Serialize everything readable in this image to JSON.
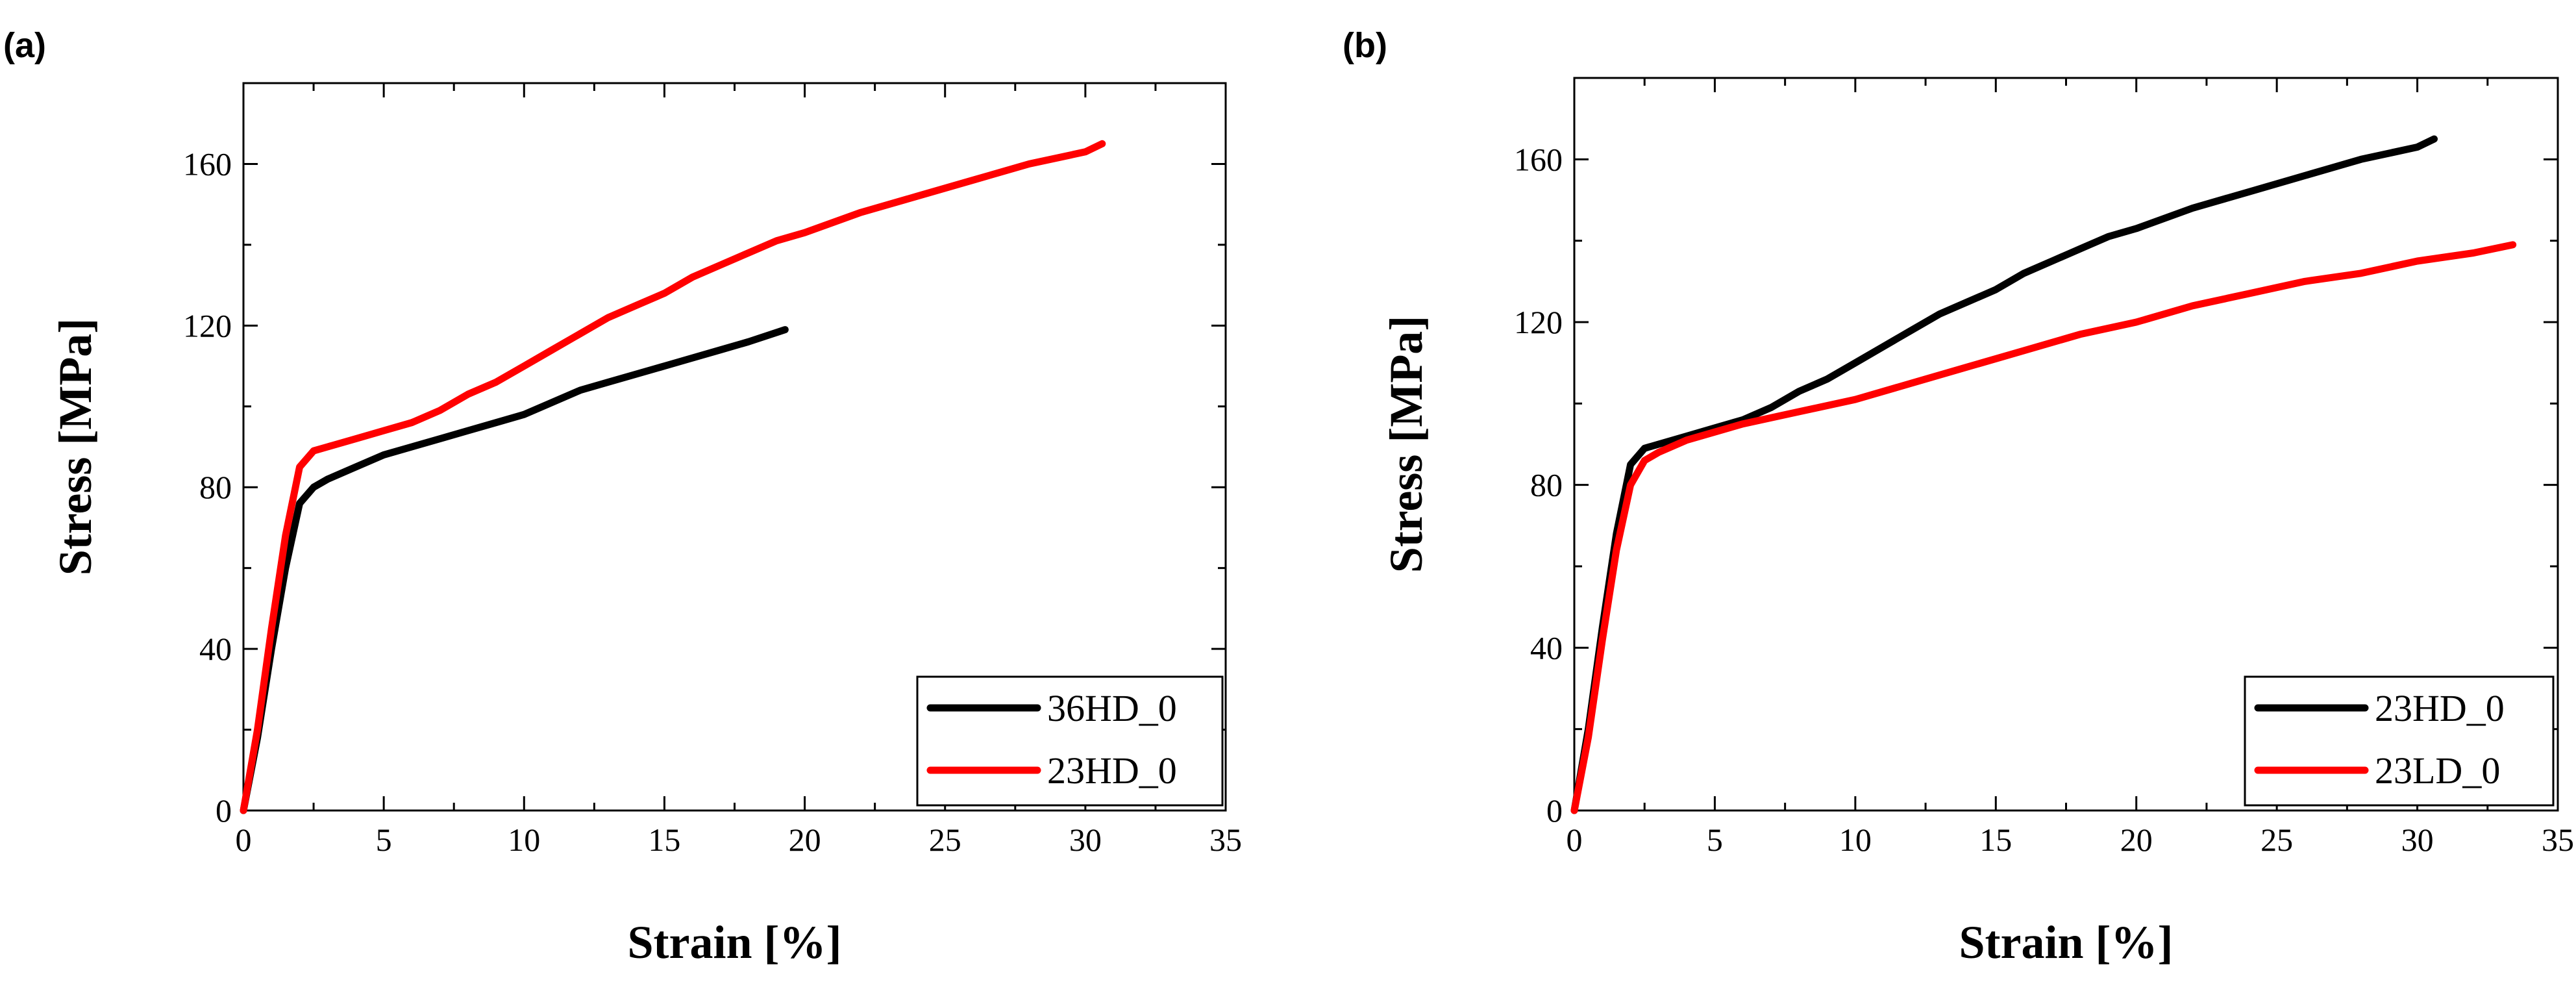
{
  "colors": {
    "black_series": "#000000",
    "red_series": "#ff0000"
  },
  "chart_data": [
    {
      "panel_label": "(a)",
      "type": "line",
      "title": "",
      "xlabel": "Strain [%]",
      "ylabel": "Stress [MPa]",
      "xlim": [
        0,
        35
      ],
      "ylim": [
        0,
        180
      ],
      "xticks": [
        0,
        5,
        10,
        15,
        20,
        25,
        30,
        35
      ],
      "yticks": [
        0,
        40,
        80,
        120,
        160
      ],
      "grid": false,
      "legend_position": "bottom-right",
      "series": [
        {
          "name": "36HD_0",
          "color": "#000000",
          "x": [
            0,
            0.5,
            1.0,
            1.5,
            2.0,
            2.5,
            3,
            4,
            5,
            6,
            7,
            8,
            9,
            10,
            11,
            12,
            13,
            14,
            15,
            16,
            17,
            18,
            19.3
          ],
          "y": [
            0,
            18,
            40,
            60,
            76,
            80,
            82,
            85,
            88,
            90,
            92,
            94,
            96,
            98,
            101,
            104,
            106,
            108,
            110,
            112,
            114,
            116,
            119
          ]
        },
        {
          "name": "23HD_0",
          "color": "#ff0000",
          "x": [
            0,
            0.5,
            1.0,
            1.5,
            2.0,
            2.5,
            3,
            4,
            5,
            6,
            7,
            8,
            9,
            10,
            11,
            12,
            13,
            14,
            15,
            16,
            17,
            18,
            19,
            20,
            22,
            24,
            26,
            28,
            30,
            30.6
          ],
          "y": [
            0,
            20,
            45,
            68,
            85,
            89,
            90,
            92,
            94,
            96,
            99,
            103,
            106,
            110,
            114,
            118,
            122,
            125,
            128,
            132,
            135,
            138,
            141,
            143,
            148,
            152,
            156,
            160,
            163,
            165
          ]
        }
      ]
    },
    {
      "panel_label": "(b)",
      "type": "line",
      "title": "",
      "xlabel": "Strain [%]",
      "ylabel": "Stress [MPa]",
      "xlim": [
        0,
        35
      ],
      "ylim": [
        0,
        180
      ],
      "xticks": [
        0,
        5,
        10,
        15,
        20,
        25,
        30,
        35
      ],
      "yticks": [
        0,
        40,
        80,
        120,
        160
      ],
      "grid": false,
      "legend_position": "bottom-right",
      "series": [
        {
          "name": "23HD_0",
          "color": "#000000",
          "x": [
            0,
            0.5,
            1.0,
            1.5,
            2.0,
            2.5,
            3,
            4,
            5,
            6,
            7,
            8,
            9,
            10,
            11,
            12,
            13,
            14,
            15,
            16,
            17,
            18,
            19,
            20,
            22,
            24,
            26,
            28,
            30,
            30.6
          ],
          "y": [
            0,
            20,
            45,
            68,
            85,
            89,
            90,
            92,
            94,
            96,
            99,
            103,
            106,
            110,
            114,
            118,
            122,
            125,
            128,
            132,
            135,
            138,
            141,
            143,
            148,
            152,
            156,
            160,
            163,
            165
          ]
        },
        {
          "name": "23LD_0",
          "color": "#ff0000",
          "x": [
            0,
            0.5,
            1.0,
            1.5,
            2.0,
            2.5,
            3,
            4,
            5,
            6,
            8,
            10,
            12,
            14,
            16,
            18,
            20,
            22,
            24,
            26,
            28,
            30,
            32,
            33.4
          ],
          "y": [
            0,
            18,
            42,
            64,
            80,
            86,
            88,
            91,
            93,
            95,
            98,
            101,
            105,
            109,
            113,
            117,
            120,
            124,
            127,
            130,
            132,
            135,
            137,
            139
          ]
        }
      ]
    }
  ]
}
